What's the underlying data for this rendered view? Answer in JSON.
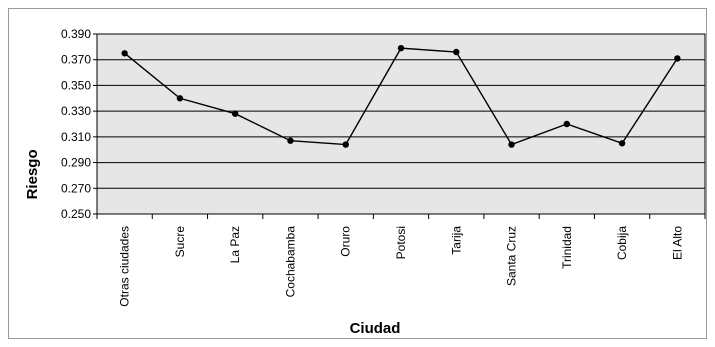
{
  "chart_data": {
    "type": "line",
    "title": "",
    "xlabel": "Ciudad",
    "ylabel": "Riesgo",
    "categories": [
      "Otras ciudades",
      "Sucre",
      "La Paz",
      "Cochabamba",
      "Oruro",
      "Potosi",
      "Tarija",
      "Santa Cruz",
      "Trinidad",
      "Cobija",
      "El Alto"
    ],
    "series": [
      {
        "values": [
          0.375,
          0.34,
          0.328,
          0.307,
          0.304,
          0.379,
          0.376,
          0.304,
          0.32,
          0.305,
          0.371
        ]
      }
    ],
    "ylim": [
      0.25,
      0.39
    ],
    "yticks": [
      "0.250",
      "0.270",
      "0.290",
      "0.310",
      "0.330",
      "0.350",
      "0.370",
      "0.390"
    ],
    "grid": true,
    "legend": "none",
    "colors": {
      "plot_background": "#e6e6e6",
      "line": "#000000",
      "gridline": "#000000"
    }
  }
}
